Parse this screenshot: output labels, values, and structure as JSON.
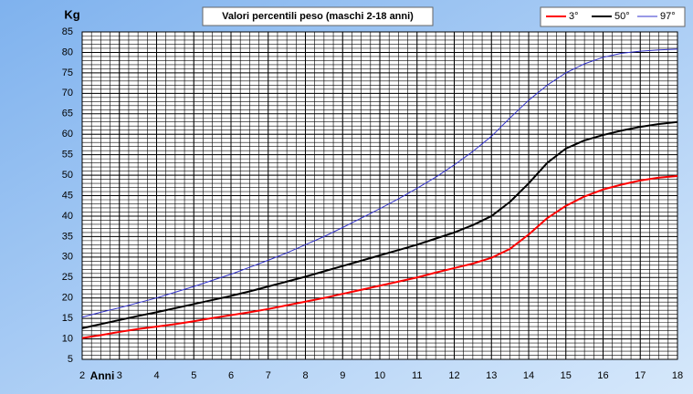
{
  "chart_data": {
    "type": "line",
    "title": "Valori percentili peso (maschi 2-18 anni)",
    "xlabel": "Anni",
    "ylabel": "Kg",
    "x": [
      2,
      2.5,
      3,
      3.5,
      4,
      4.5,
      5,
      5.5,
      6,
      6.5,
      7,
      7.5,
      8,
      8.5,
      9,
      9.5,
      10,
      10.5,
      11,
      11.5,
      12,
      12.5,
      13,
      13.5,
      14,
      14.5,
      15,
      15.5,
      16,
      16.5,
      17,
      17.5,
      18
    ],
    "series": [
      {
        "name": "3°",
        "color": "#ff0000",
        "width": 2,
        "values": [
          10.2,
          10.9,
          11.7,
          12.4,
          13,
          13.6,
          14.3,
          15.1,
          15.8,
          16.5,
          17.3,
          18.2,
          19.1,
          20,
          21,
          22,
          23,
          24,
          25,
          26.2,
          27.3,
          28.4,
          29.8,
          32,
          35.5,
          39.5,
          42.5,
          44.8,
          46.5,
          47.7,
          48.7,
          49.4,
          49.8
        ]
      },
      {
        "name": "50°",
        "color": "#000000",
        "width": 2,
        "values": [
          12.6,
          13.6,
          14.6,
          15.6,
          16.5,
          17.5,
          18.5,
          19.5,
          20.5,
          21.6,
          22.8,
          24,
          25.2,
          26.5,
          27.8,
          29.1,
          30.4,
          31.7,
          33,
          34.5,
          36,
          37.8,
          40,
          43.5,
          48,
          53,
          56.5,
          58.5,
          59.8,
          60.9,
          61.8,
          62.5,
          63
        ]
      },
      {
        "name": "97°",
        "color": "#3333cc",
        "width": 1,
        "values": [
          15.3,
          16.5,
          17.6,
          18.8,
          20,
          21.4,
          22.8,
          24.3,
          25.8,
          27.5,
          29.2,
          31,
          33,
          35,
          37.2,
          39.5,
          41.8,
          44.2,
          46.8,
          49.5,
          52.5,
          55.8,
          59.5,
          64,
          68.3,
          72,
          75,
          77.2,
          78.8,
          79.8,
          80.3,
          80.6,
          80.8
        ]
      }
    ],
    "xlim": [
      2,
      18
    ],
    "ylim": [
      5,
      85
    ],
    "xticks": [
      2,
      3,
      4,
      5,
      6,
      7,
      8,
      9,
      10,
      11,
      12,
      13,
      14,
      15,
      16,
      17,
      18
    ],
    "yticks": [
      5,
      10,
      15,
      20,
      25,
      30,
      35,
      40,
      45,
      50,
      55,
      60,
      65,
      70,
      75,
      80,
      85
    ],
    "grid": true,
    "legend": "top-right"
  }
}
